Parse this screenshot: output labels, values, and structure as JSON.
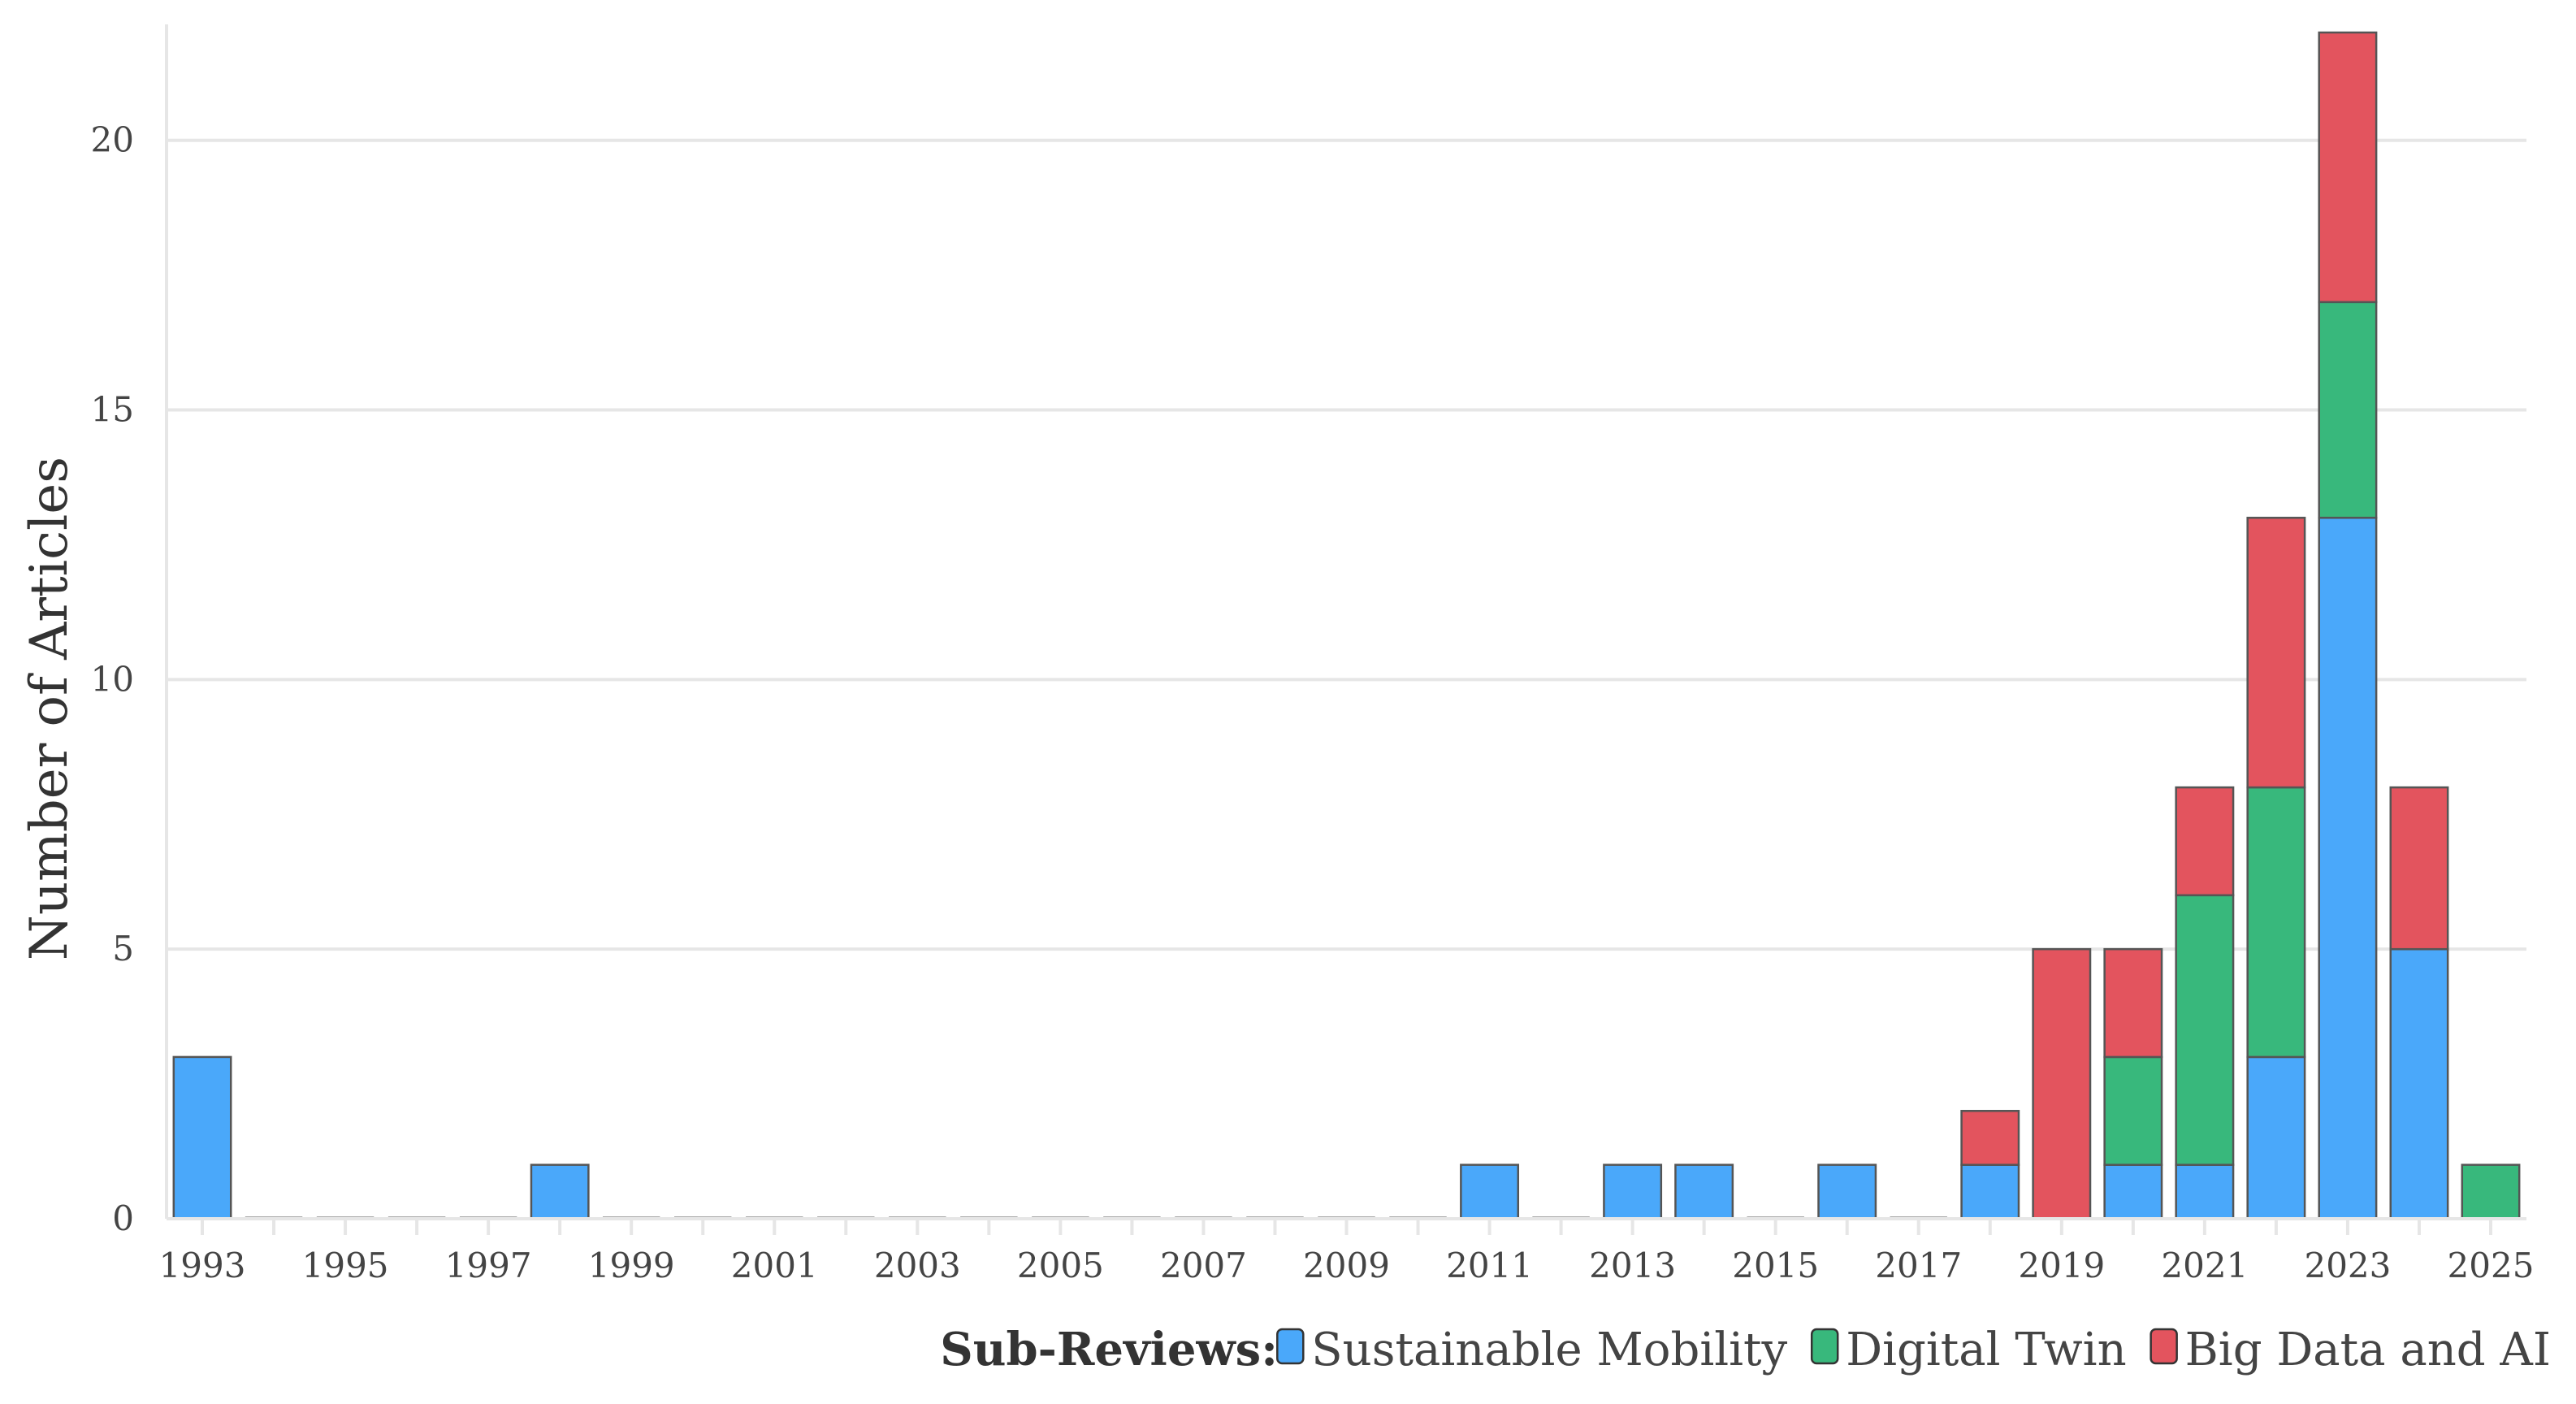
{
  "chart_data": {
    "type": "bar",
    "stacked": true,
    "title": "",
    "xlabel": "",
    "ylabel": "Number of Articles",
    "ylim": [
      0,
      22
    ],
    "yticks": [
      0,
      5,
      10,
      15,
      20
    ],
    "grid": true,
    "categories": [
      "1993",
      "1994",
      "1995",
      "1996",
      "1997",
      "1998",
      "1999",
      "2000",
      "2001",
      "2002",
      "2003",
      "2004",
      "2005",
      "2006",
      "2007",
      "2008",
      "2009",
      "2010",
      "2011",
      "2012",
      "2013",
      "2014",
      "2015",
      "2016",
      "2017",
      "2018",
      "2019",
      "2020",
      "2021",
      "2022",
      "2023",
      "2024",
      "2025"
    ],
    "xtick_labels": [
      "1993",
      "1995",
      "1997",
      "1999",
      "2001",
      "2003",
      "2005",
      "2007",
      "2009",
      "2011",
      "2013",
      "2015",
      "2017",
      "2019",
      "2021",
      "2023",
      "2025"
    ],
    "series": [
      {
        "name": "Sustainable Mobility",
        "color": "#4aa8fa",
        "values": [
          3,
          0,
          0,
          0,
          0,
          1,
          0,
          0,
          0,
          0,
          0,
          0,
          0,
          0,
          0,
          0,
          0,
          0,
          1,
          0,
          1,
          1,
          0,
          1,
          0,
          1,
          0,
          1,
          1,
          3,
          13,
          5,
          0
        ]
      },
      {
        "name": "Digital Twin",
        "color": "#38b87c",
        "values": [
          0,
          0,
          0,
          0,
          0,
          0,
          0,
          0,
          0,
          0,
          0,
          0,
          0,
          0,
          0,
          0,
          0,
          0,
          0,
          0,
          0,
          0,
          0,
          0,
          0,
          0,
          0,
          2,
          5,
          5,
          4,
          0,
          1
        ]
      },
      {
        "name": "Big Data and AI",
        "color": "#e3545e",
        "values": [
          0,
          0,
          0,
          0,
          0,
          0,
          0,
          0,
          0,
          0,
          0,
          0,
          0,
          0,
          0,
          0,
          0,
          0,
          0,
          0,
          0,
          0,
          0,
          0,
          0,
          1,
          5,
          2,
          2,
          5,
          5,
          3,
          0
        ]
      }
    ],
    "legend": {
      "title": "Sub-Reviews:",
      "placement": "bottom-right"
    }
  }
}
